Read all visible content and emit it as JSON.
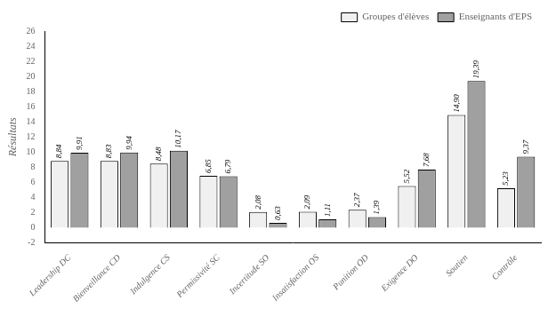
{
  "chart_data": {
    "type": "bar",
    "categories": [
      "Leadership DC",
      "Bienveillance CD",
      "Indulgence CS",
      "Permissivité SC",
      "Incertitude SO",
      "Insatisfaction OS",
      "Punition OD",
      "Exigence DO",
      "Soutien",
      "Contrôle"
    ],
    "series": [
      {
        "name": "Groupes d'élèves",
        "color": "#f0f0f0",
        "values": [
          8.84,
          8.83,
          8.48,
          6.85,
          2.08,
          2.09,
          2.37,
          5.52,
          14.9,
          5.23
        ],
        "value_labels": [
          "8,84",
          "8,83",
          "8,48",
          "6,85",
          "2,08",
          "2,09",
          "2,37",
          "5,52",
          "14,90",
          "5,23"
        ]
      },
      {
        "name": "Enseignants d'EPS",
        "color": "#a0a0a0",
        "values": [
          9.91,
          9.94,
          10.17,
          6.79,
          0.63,
          1.11,
          1.39,
          7.68,
          19.39,
          9.37
        ],
        "value_labels": [
          "9,91",
          "9,94",
          "10,17",
          "6,79",
          "0,63",
          "1,11",
          "1,39",
          "7,68",
          "19,39",
          "9,37"
        ]
      }
    ],
    "ylabel": "Résultats",
    "ylim": [
      -2,
      26
    ],
    "yticks": [
      -2,
      0,
      2,
      4,
      6,
      8,
      10,
      12,
      14,
      16,
      18,
      20,
      22,
      24,
      26
    ],
    "grid": false,
    "legend": "upper right",
    "data_labels": true
  }
}
